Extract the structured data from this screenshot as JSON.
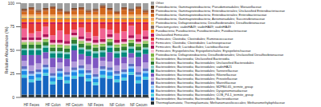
{
  "chart_data": {
    "type": "bar",
    "stacked": true,
    "y_label": "Relative Abundance (%)",
    "ylim": [
      0,
      100
    ],
    "yticks": [
      0,
      25,
      50,
      75,
      100
    ],
    "legend": "right",
    "categories": [
      null,
      "HF Feces",
      null,
      null,
      "HF Colon",
      null,
      null,
      "HF Cecum",
      null,
      null,
      "NF Feces",
      null,
      null,
      "NF Colon",
      null,
      null,
      "NF Cecum",
      null
    ],
    "series": [
      {
        "name": "Other",
        "color": "#9e9e9e",
        "values": [
          6,
          4,
          7,
          5,
          3,
          6,
          8,
          5,
          4,
          7,
          6,
          2,
          5,
          8,
          4,
          6,
          3,
          7
        ]
      },
      {
        "name": "Proteobacteria; Gammaproteobacteria; Pseudomonadales; Moraxellaceae",
        "color": "#6b4226",
        "values": [
          1,
          1,
          1,
          1,
          1,
          1,
          1,
          1,
          1,
          1,
          1,
          1,
          1,
          1,
          1,
          1,
          1,
          1
        ]
      },
      {
        "name": "Proteobacteria; Gammaproteobacteria; Enterobacteriales; Unclassified Enterobacteriaceae",
        "color": "#a0522d",
        "values": [
          2,
          2,
          2,
          2,
          2,
          2,
          2,
          2,
          2,
          2,
          2,
          2,
          2,
          2,
          2,
          2,
          2,
          2
        ]
      },
      {
        "name": "Proteobacteria; Gammaproteobacteria; Enterobacteriales; Enterobacteriaceae",
        "color": "#d2691e",
        "values": [
          3,
          5,
          2,
          4,
          6,
          3,
          1,
          4,
          5,
          2,
          3,
          7,
          4,
          1,
          5,
          3,
          6,
          2
        ]
      },
      {
        "name": "Proteobacteria; Gammaproteobacteria; Aeromonadales; Succinivibrionaceae",
        "color": "#f4a460",
        "values": [
          2,
          2,
          2,
          2,
          2,
          2,
          2,
          2,
          2,
          2,
          2,
          2,
          2,
          2,
          2,
          2,
          2,
          2
        ]
      },
      {
        "name": "Proteobacteria; Deltaproteobacteria; Desulfovibrionales; Desulfovibrionaceae",
        "color": "#e9c46a",
        "values": [
          2,
          2,
          2,
          2,
          2,
          2,
          2,
          2,
          2,
          2,
          2,
          2,
          2,
          2,
          2,
          2,
          2,
          2
        ]
      },
      {
        "name": "Planctomycetes; vadinHA49; vadinHA49; vadinHA49",
        "color": "#8d6e63",
        "values": [
          1,
          1,
          1,
          1,
          1,
          1,
          1,
          1,
          1,
          1,
          1,
          1,
          1,
          1,
          1,
          1,
          1,
          1
        ]
      },
      {
        "name": "Fusobacteria; Fusobacteriia; Fusobacteriales; Fusobacteriaceae",
        "color": "#ff7f0e",
        "values": [
          3,
          3,
          3,
          3,
          3,
          3,
          3,
          3,
          3,
          3,
          3,
          3,
          3,
          3,
          3,
          3,
          3,
          3
        ]
      },
      {
        "name": "Unclassified Firmicutes",
        "color": "#c2185b",
        "values": [
          2,
          2,
          2,
          2,
          2,
          2,
          2,
          2,
          2,
          2,
          2,
          2,
          2,
          2,
          2,
          2,
          2,
          2
        ]
      },
      {
        "name": "Firmicutes; Clostridia; Clostridiales; Ruminococcaceae",
        "color": "#e53935",
        "values": [
          5,
          10,
          8,
          3,
          12,
          7,
          11,
          6,
          4,
          9,
          13,
          5,
          6,
          10,
          8,
          2,
          11,
          7
        ]
      },
      {
        "name": "Firmicutes; Clostridia; Clostridiales; Lachnospiraceae",
        "color": "#f06292",
        "values": [
          9,
          4,
          6,
          8,
          5,
          10,
          7,
          3,
          9,
          6,
          4,
          11,
          5,
          7,
          8,
          10,
          5,
          6
        ]
      },
      {
        "name": "Firmicutes; Bacilli; Lactobacillales; Lactobacillaceae",
        "color": "#ad1457",
        "values": [
          3,
          3,
          3,
          3,
          3,
          3,
          3,
          3,
          3,
          3,
          3,
          3,
          3,
          3,
          3,
          3,
          3,
          3
        ]
      },
      {
        "name": "Firmicutes; Erysipelotrichia; Erysipelotrichales; Erysipelotrichaceae",
        "color": "#f8bbd0",
        "values": [
          2,
          2,
          2,
          2,
          2,
          2,
          2,
          2,
          2,
          2,
          2,
          2,
          2,
          2,
          2,
          2,
          2,
          2
        ]
      },
      {
        "name": "Proteobacteria; Deltaproteobacteria; Desulfovibrionales; Unclassified Desulfovibrionaceae",
        "color": "#7cb342",
        "values": [
          1,
          1,
          1,
          1,
          1,
          1,
          1,
          1,
          1,
          1,
          1,
          1,
          1,
          1,
          1,
          1,
          1,
          1
        ]
      },
      {
        "name": "Bacteroidetes; Bacteroidia; Unclassified Bacteroidia",
        "color": "#9ccc65",
        "values": [
          2,
          2,
          2,
          2,
          2,
          2,
          2,
          2,
          2,
          2,
          2,
          2,
          2,
          2,
          2,
          2,
          2,
          2
        ]
      },
      {
        "name": "Bacteroidetes; Bacteroidia; Bacteroidales; Unclassified Bacteroidales",
        "color": "#2e7d32",
        "values": [
          4,
          4,
          4,
          4,
          4,
          4,
          4,
          4,
          4,
          4,
          4,
          4,
          4,
          4,
          4,
          4,
          4,
          4
        ]
      },
      {
        "name": "Bacteroidetes; Bacteroidia; Bacteroidales; vadinHA21",
        "color": "#80cbc4",
        "values": [
          2,
          2,
          2,
          2,
          2,
          2,
          2,
          2,
          2,
          2,
          2,
          2,
          2,
          2,
          2,
          2,
          2,
          2
        ]
      },
      {
        "name": "Bacteroidetes; Bacteroidia; Bacteroidales; Tannerellaceae",
        "color": "#00897b",
        "values": [
          5,
          5,
          5,
          5,
          5,
          5,
          5,
          5,
          5,
          5,
          5,
          5,
          5,
          5,
          5,
          5,
          5,
          5
        ]
      },
      {
        "name": "Bacteroidetes; Bacteroidia; Bacteroidales; Rikenellaceae",
        "color": "#7e57c2",
        "values": [
          6,
          11,
          9,
          7,
          10,
          5,
          8,
          12,
          6,
          9,
          11,
          4,
          10,
          8,
          7,
          5,
          10,
          9
        ]
      },
      {
        "name": "Bacteroidetes; Bacteroidia; Bacteroidales; Prevotellaceae",
        "color": "#b39ddb",
        "values": [
          6,
          6,
          6,
          6,
          6,
          6,
          6,
          6,
          6,
          6,
          6,
          6,
          6,
          6,
          6,
          6,
          6,
          6
        ]
      },
      {
        "name": "Bacteroidetes; Bacteroidia; Bacteroidales; Marinifilaceae",
        "color": "#5c6bc0",
        "values": [
          3,
          3,
          3,
          3,
          3,
          3,
          3,
          3,
          3,
          3,
          3,
          3,
          3,
          3,
          3,
          3,
          3,
          3
        ]
      },
      {
        "name": "Bacteroidetes; Bacteroidia; Bacteroidales; M2PB4-65_termite_group",
        "color": "#90caf9",
        "values": [
          2,
          2,
          2,
          2,
          2,
          2,
          2,
          2,
          2,
          2,
          2,
          2,
          2,
          2,
          2,
          2,
          2,
          2
        ]
      },
      {
        "name": "Bacteroidetes; Bacteroidia; Bacteroidales; Dysgonomonadaceae",
        "color": "#1e88e5",
        "values": [
          4,
          4,
          4,
          4,
          4,
          4,
          4,
          4,
          4,
          4,
          4,
          4,
          4,
          4,
          4,
          4,
          4,
          4
        ]
      },
      {
        "name": "Bacteroidetes; Bacteroidia; Bacteroidales; COB_P4-1_termite_group",
        "color": "#4dd0e1",
        "values": [
          3,
          3,
          3,
          3,
          3,
          3,
          3,
          3,
          3,
          3,
          3,
          3,
          3,
          3,
          3,
          3,
          3,
          3
        ]
      },
      {
        "name": "Bacteroidetes; Bacteroidia; Bacteroidales; Bacteroidaceae",
        "color": "#1565c0",
        "values": [
          18,
          13,
          15,
          20,
          11,
          16,
          12,
          17,
          19,
          14,
          10,
          18,
          17,
          13,
          15,
          21,
          12,
          16
        ]
      },
      {
        "name": "Thermoplasmatota; Thermoplasmata; Methanomassiliicoccales; Methanomethylophilaceae",
        "color": "#263238",
        "values": [
          3,
          3,
          3,
          3,
          3,
          3,
          3,
          3,
          3,
          3,
          3,
          3,
          3,
          3,
          3,
          3,
          3,
          3
        ]
      }
    ]
  }
}
